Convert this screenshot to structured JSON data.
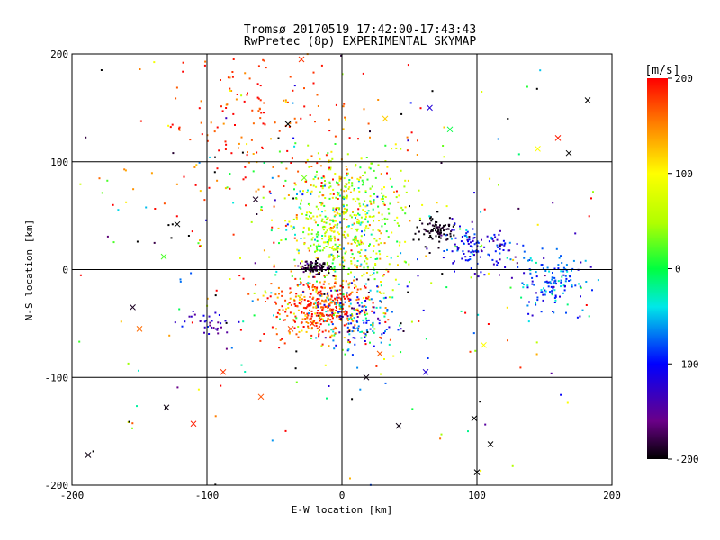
{
  "chart_data": {
    "type": "scatter",
    "title": "Tromsø 20170519 17:42:00-17:43:43",
    "subtitle": "RwPretec (8p) EXPERIMENTAL SKYMAP",
    "xlabel": "E-W location [km]",
    "ylabel": "N-S location [km]",
    "xlim": [
      -200,
      200
    ],
    "ylim": [
      -200,
      200
    ],
    "x_ticks": [
      -200,
      -100,
      0,
      100,
      200
    ],
    "y_ticks": [
      -200,
      -100,
      0,
      100,
      200
    ],
    "grid": true,
    "colorbar": {
      "label": "[m/s]",
      "range": [
        -200,
        200
      ],
      "ticks": [
        200,
        100,
        0,
        -100,
        -200
      ],
      "colormap": "rainbow black-purple-blue-cyan-green-yellow-red"
    },
    "clusters": [
      {
        "cx": 0,
        "cy": 40,
        "sx": 22,
        "sy": 35,
        "n": 650,
        "vmean": 60,
        "vsd": 55
      },
      {
        "cx": 70,
        "cy": 38,
        "sx": 6,
        "sy": 6,
        "n": 90,
        "vmean": -195,
        "vsd": 8
      },
      {
        "cx": 100,
        "cy": 20,
        "sx": 15,
        "sy": 10,
        "n": 130,
        "vmean": -110,
        "vsd": 30
      },
      {
        "cx": 155,
        "cy": -12,
        "sx": 14,
        "sy": 12,
        "n": 140,
        "vmean": -80,
        "vsd": 30
      },
      {
        "cx": -15,
        "cy": -35,
        "sx": 18,
        "sy": 14,
        "n": 380,
        "vmean": 175,
        "vsd": 35
      },
      {
        "cx": -20,
        "cy": 2,
        "sx": 6,
        "sy": 3,
        "n": 90,
        "vmean": -190,
        "vsd": 15
      },
      {
        "cx": 10,
        "cy": -45,
        "sx": 15,
        "sy": 15,
        "n": 160,
        "vmean": -80,
        "vsd": 60
      },
      {
        "cx": -60,
        "cy": 130,
        "sx": 45,
        "sy": 40,
        "n": 180,
        "vmean": 180,
        "vsd": 25
      },
      {
        "cx": -100,
        "cy": -50,
        "sx": 10,
        "sy": 6,
        "n": 35,
        "vmean": -130,
        "vsd": 25
      },
      {
        "cx": 0,
        "cy": 0,
        "sx": 110,
        "sy": 95,
        "n": 320,
        "vmean": 0,
        "vsd": 160
      }
    ],
    "x_markers": [
      [
        -188,
        -172,
        -195
      ],
      [
        -155,
        -35,
        -190
      ],
      [
        -130,
        -128,
        -195
      ],
      [
        -110,
        -143,
        190
      ],
      [
        -88,
        -95,
        180
      ],
      [
        -60,
        -118,
        170
      ],
      [
        -38,
        -55,
        170
      ],
      [
        -22,
        -50,
        190
      ],
      [
        18,
        -100,
        -195
      ],
      [
        28,
        -78,
        165
      ],
      [
        42,
        -145,
        -195
      ],
      [
        62,
        -95,
        -120
      ],
      [
        98,
        -138,
        -200
      ],
      [
        100,
        -188,
        -200
      ],
      [
        110,
        -162,
        -200
      ],
      [
        145,
        112,
        100
      ],
      [
        160,
        122,
        190
      ],
      [
        182,
        157,
        -200
      ],
      [
        168,
        108,
        -200
      ],
      [
        -40,
        135,
        -200
      ],
      [
        -64,
        65,
        -190
      ],
      [
        -122,
        42,
        -200
      ],
      [
        -28,
        85,
        30
      ],
      [
        32,
        140,
        120
      ],
      [
        65,
        150,
        -120
      ],
      [
        -30,
        195,
        180
      ],
      [
        80,
        130,
        0
      ],
      [
        105,
        -70,
        100
      ],
      [
        -150,
        -55,
        160
      ],
      [
        -132,
        12,
        20
      ]
    ]
  }
}
